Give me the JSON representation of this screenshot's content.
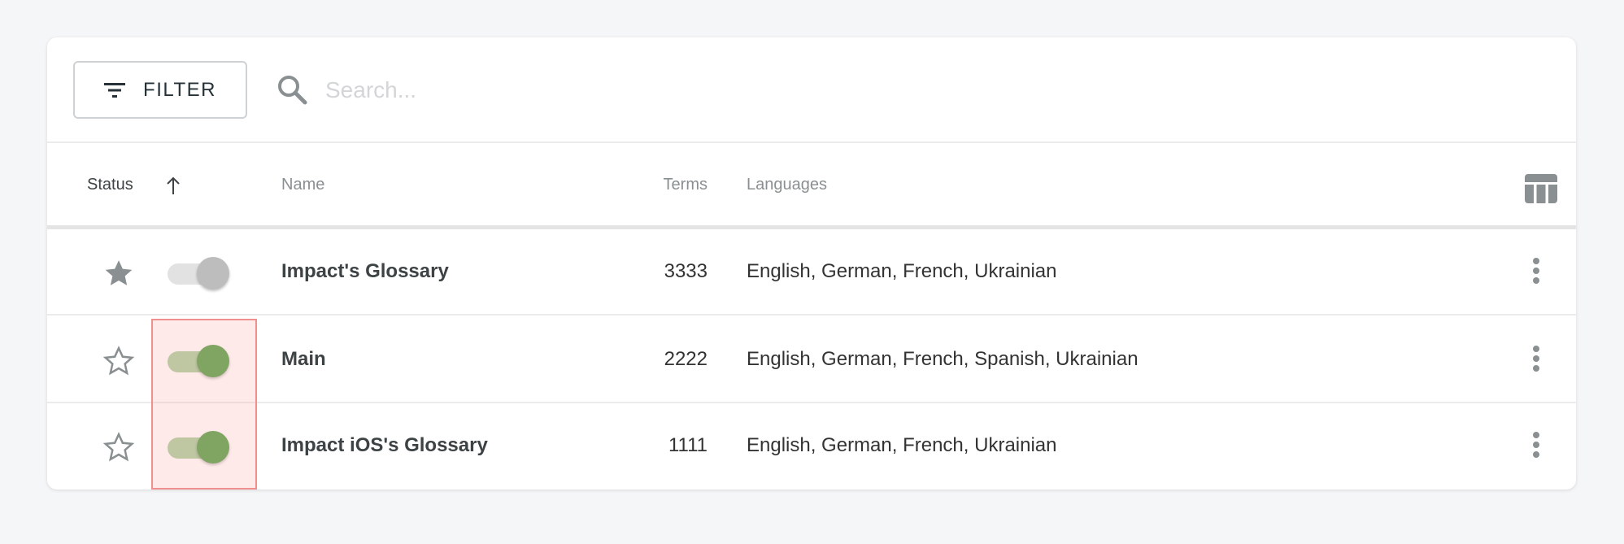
{
  "toolbar": {
    "filter_label": "FILTER",
    "search_placeholder": "Search...",
    "search_value": ""
  },
  "columns": {
    "status": "Status",
    "name": "Name",
    "terms": "Terms",
    "languages": "Languages",
    "sort_direction": "ascending"
  },
  "rows": [
    {
      "name": "Impact's Glossary",
      "terms": "3333",
      "languages": "English, German, French, Ukrainian",
      "starred": true,
      "enabled": false
    },
    {
      "name": "Main",
      "terms": "2222",
      "languages": "English, German, French, Spanish, Ukrainian",
      "starred": false,
      "enabled": true
    },
    {
      "name": "Impact iOS's Glossary",
      "terms": "1111",
      "languages": "English, German, French, Ukrainian",
      "starred": false,
      "enabled": true
    }
  ],
  "colors": {
    "toggle_on": "#56a24a",
    "toggle_on_track": "#a9cf9f",
    "toggle_off": "#bdbdbd",
    "toggle_off_track": "#e2e2e2",
    "highlight": "#f08f8f"
  }
}
